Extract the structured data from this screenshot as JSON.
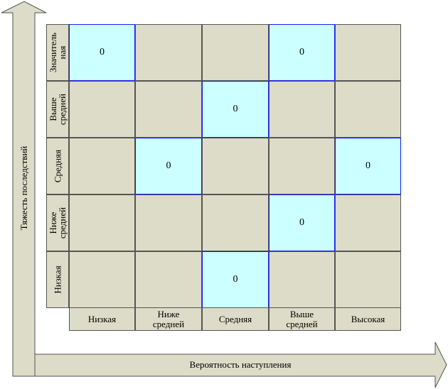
{
  "axes": {
    "y_label": "Тяжесть последствий",
    "x_label": "Вероятность наступления"
  },
  "rows": [
    {
      "label": "Значитель\nная",
      "cells": [
        "0",
        "",
        "",
        "0",
        ""
      ]
    },
    {
      "label": "Выше\nсредней",
      "cells": [
        "",
        "",
        "0",
        "",
        ""
      ]
    },
    {
      "label": "Средняя",
      "cells": [
        "",
        "0",
        "",
        "",
        "0"
      ]
    },
    {
      "label": "Ниже\nсредней",
      "cells": [
        "",
        "",
        "",
        "0",
        ""
      ]
    },
    {
      "label": "Низкая",
      "cells": [
        "",
        "",
        "0",
        "",
        ""
      ]
    }
  ],
  "columns": [
    "Низкая",
    "Ниже\nсредней",
    "Средняя",
    "Выше\nсредней",
    "Высокая"
  ],
  "colors": {
    "cell": "#dcdcc8",
    "highlight": "#ccffff",
    "highlight_border": "#1a1aff",
    "arrow_fill": "#dcdcc8"
  }
}
